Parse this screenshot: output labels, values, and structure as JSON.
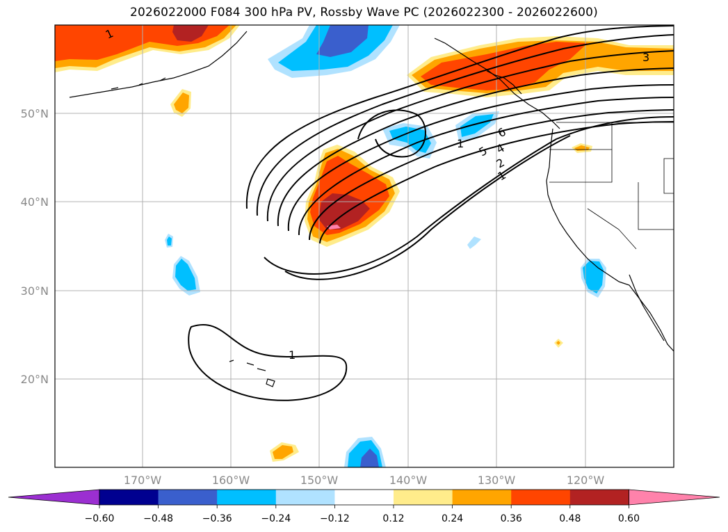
{
  "title": "2026022000 F084 300 hPa PV, Rossby Wave PC (2026022300 - 2026022600)",
  "axes": {
    "lat_labels": [
      "50°N",
      "40°N",
      "30°N",
      "20°N"
    ],
    "lon_labels": [
      "170°W",
      "160°W",
      "150°W",
      "140°W",
      "130°W",
      "120°W"
    ]
  },
  "colorbar": {
    "ticks": [
      "−0.60",
      "−0.48",
      "−0.36",
      "−0.24",
      "−0.12",
      "0.12",
      "0.24",
      "0.36",
      "0.48",
      "0.60"
    ],
    "colors": [
      "#9b2fd1",
      "#000090",
      "#3a5fcd",
      "#00bfff",
      "#b0e2ff",
      "#ffffff",
      "#ffec8b",
      "#ffa500",
      "#ff4500",
      "#b22222",
      "#ff82ab"
    ]
  },
  "contour_labels": [
    "1",
    "1",
    "3",
    "6",
    "5",
    "4",
    "2",
    "1",
    "1"
  ],
  "colors": {
    "axis_label": "#888888",
    "grid": "#b0b0b0"
  }
}
